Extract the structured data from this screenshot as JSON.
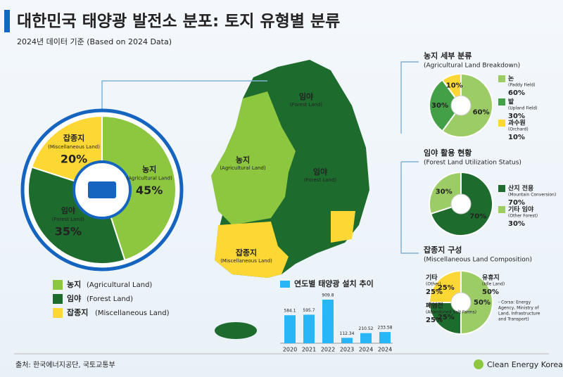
{
  "header": {
    "title": "대한민국 태양광 발전소 분포: 토지 유형별 분류",
    "subtitle": "2024년 데이터 기준 (Based on 2024 Data)"
  },
  "main_donut": {
    "slices": [
      {
        "name": "농지",
        "name_en": "(Agricultural Land)",
        "value": 45,
        "label": "45%",
        "color": "#8dc63f"
      },
      {
        "name": "임야",
        "name_en": "(Forest Land)",
        "value": 35,
        "label": "35%",
        "color": "#1e6b2e"
      },
      {
        "name": "잡종지",
        "name_en": "(Miscellaneous Land)",
        "value": 20,
        "label": "20%",
        "color": "#fdd835"
      }
    ]
  },
  "legend": [
    {
      "name": "농지",
      "name_en": "(Agricultural Land)",
      "color": "#8dc63f"
    },
    {
      "name": "임야",
      "name_en": "(Forest Land)",
      "color": "#1e6b2e"
    },
    {
      "name": "잡종지",
      "name_en": "(Miscellaneous Land)",
      "color": "#fdd835"
    }
  ],
  "map": {
    "labels": [
      {
        "name": "임야",
        "name_en": "(Forest Land)"
      },
      {
        "name": "농지",
        "name_en": "(Agricultural Land)"
      },
      {
        "name": "임야",
        "name_en": "(Forest Land)"
      },
      {
        "name": "잡종지",
        "name_en": "(Miscellaneous Land)"
      }
    ]
  },
  "panels": [
    {
      "title": "농지 세부 분류",
      "title_en": "(Agricultural Land Breakdown)",
      "slices": [
        {
          "name": "논",
          "name_en": "(Paddy Field)",
          "value": 60,
          "label": "60%",
          "color": "#9ccc65"
        },
        {
          "name": "밭",
          "name_en": "(Upland Field)",
          "value": 30,
          "label": "30%",
          "color": "#43a047"
        },
        {
          "name": "과수원",
          "name_en": "(Orchard)",
          "value": 10,
          "label": "10%",
          "color": "#fdd835"
        }
      ]
    },
    {
      "title": "임야 활용 현황",
      "title_en": "(Forest Land Utilization Status)",
      "slices": [
        {
          "name": "산지 전용",
          "name_en": "(Mountain Conversion)",
          "value": 70,
          "label": "70%",
          "color": "#1e6b2e"
        },
        {
          "name": "기타 임야",
          "name_en": "(Other Forest)",
          "value": 30,
          "label": "30%",
          "color": "#9ccc65"
        }
      ]
    },
    {
      "title": "잡종지 구성",
      "title_en": "(Miscellaneous Land Composition)",
      "slices": [
        {
          "name": "유휴지",
          "name_en": "(Idle Land)",
          "value": 50,
          "label": "50%",
          "color": "#9ccc65"
        },
        {
          "name": "폐염전",
          "name_en": "(Abandoned Salt Farms)",
          "value": 25,
          "label": "25%",
          "color": "#1e6b2e"
        },
        {
          "name": "기타",
          "name_en": "(Other)",
          "value": 25,
          "label": "25%",
          "color": "#fdd835"
        }
      ],
      "note": [
        "- Corsa: Energy",
        "Agency, Ministry of",
        "Land, Infrastructure",
        "and Transport)"
      ]
    }
  ],
  "bar_chart": {
    "title": "연도별 태양광 설치 추이",
    "categories": [
      "2020",
      "2021",
      "2022",
      "2023",
      "2024",
      "2024"
    ],
    "values": [
      584.1,
      595.7,
      909.8,
      112.34,
      210.52,
      233.58
    ],
    "color": "#29b6f6"
  },
  "footer": {
    "source": "출처: 한국에너지공단, 국토교통부",
    "brand": "Clean Energy Korea"
  }
}
